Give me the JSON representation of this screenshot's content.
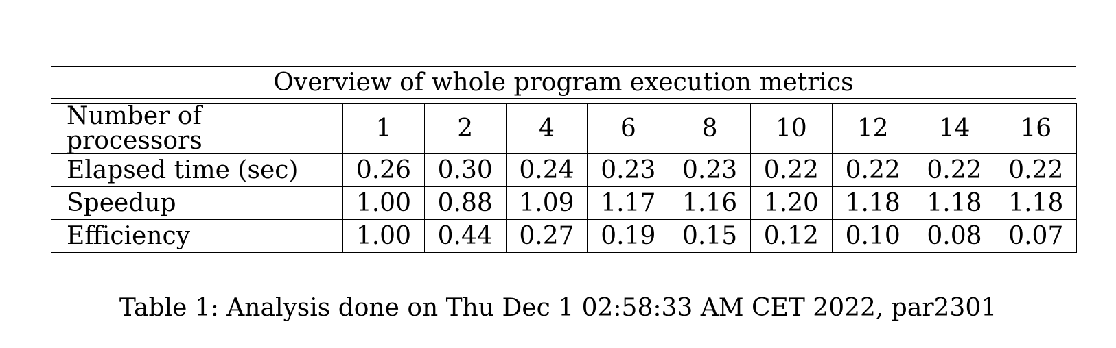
{
  "table": {
    "title": "Overview of whole program execution metrics",
    "rows": [
      {
        "label": "Number of processors",
        "values": [
          "1",
          "2",
          "4",
          "6",
          "8",
          "10",
          "12",
          "14",
          "16"
        ]
      },
      {
        "label": "Elapsed time (sec)",
        "values": [
          "0.26",
          "0.30",
          "0.24",
          "0.23",
          "0.23",
          "0.22",
          "0.22",
          "0.22",
          "0.22"
        ]
      },
      {
        "label": "Speedup",
        "values": [
          "1.00",
          "0.88",
          "1.09",
          "1.17",
          "1.16",
          "1.20",
          "1.18",
          "1.18",
          "1.18"
        ]
      },
      {
        "label": "Efficiency",
        "values": [
          "1.00",
          "0.44",
          "0.27",
          "0.19",
          "0.15",
          "0.12",
          "0.10",
          "0.08",
          "0.07"
        ]
      }
    ]
  },
  "caption": "Table 1: Analysis done on Thu Dec 1 02:58:33 AM CET 2022, par2301"
}
